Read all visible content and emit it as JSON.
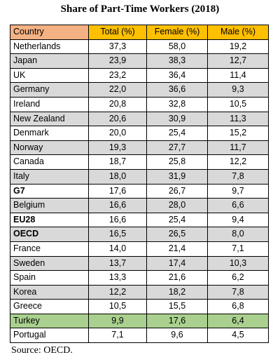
{
  "title": "Share of Part-Time Workers (2018)",
  "source": "Source: OECD.",
  "colors": {
    "header_country": "#f4b183",
    "header_values": "#ffc000",
    "row_stripe": "#d9d9d9",
    "highlight": "#a9d08e"
  },
  "chart_data": {
    "type": "table",
    "title": "Share of Part-Time Workers (2018)",
    "columns": [
      "Country",
      "Total (%)",
      "Female (%)",
      "Male (%)"
    ],
    "rows": [
      {
        "country": "Netherlands",
        "total": "37,3",
        "female": "58,0",
        "male": "19,2",
        "bold": false,
        "highlight": false
      },
      {
        "country": "Japan",
        "total": "23,9",
        "female": "38,3",
        "male": "12,7",
        "bold": false,
        "highlight": false
      },
      {
        "country": "UK",
        "total": "23,2",
        "female": "36,4",
        "male": "11,4",
        "bold": false,
        "highlight": false
      },
      {
        "country": "Germany",
        "total": "22,0",
        "female": "36,6",
        "male": "9,3",
        "bold": false,
        "highlight": false
      },
      {
        "country": "Ireland",
        "total": "20,8",
        "female": "32,8",
        "male": "10,5",
        "bold": false,
        "highlight": false
      },
      {
        "country": "New Zealand",
        "total": "20,6",
        "female": "30,9",
        "male": "11,3",
        "bold": false,
        "highlight": false
      },
      {
        "country": "Denmark",
        "total": "20,0",
        "female": "25,4",
        "male": "15,2",
        "bold": false,
        "highlight": false
      },
      {
        "country": "Norway",
        "total": "19,3",
        "female": "27,7",
        "male": "11,7",
        "bold": false,
        "highlight": false
      },
      {
        "country": "Canada",
        "total": "18,7",
        "female": "25,8",
        "male": "12,2",
        "bold": false,
        "highlight": false
      },
      {
        "country": "Italy",
        "total": "18,0",
        "female": "31,9",
        "male": "7,8",
        "bold": false,
        "highlight": false
      },
      {
        "country": "G7",
        "total": "17,6",
        "female": "26,7",
        "male": "9,7",
        "bold": true,
        "highlight": false
      },
      {
        "country": "Belgium",
        "total": "16,6",
        "female": "28,0",
        "male": "6,6",
        "bold": false,
        "highlight": false
      },
      {
        "country": "EU28",
        "total": "16,6",
        "female": "25,4",
        "male": "9,4",
        "bold": true,
        "highlight": false
      },
      {
        "country": "OECD",
        "total": "16,5",
        "female": "26,5",
        "male": "8,0",
        "bold": true,
        "highlight": false
      },
      {
        "country": "France",
        "total": "14,0",
        "female": "21,4",
        "male": "7,1",
        "bold": false,
        "highlight": false
      },
      {
        "country": "Sweden",
        "total": "13,7",
        "female": "17,4",
        "male": "10,3",
        "bold": false,
        "highlight": false
      },
      {
        "country": "Spain",
        "total": "13,3",
        "female": "21,6",
        "male": "6,2",
        "bold": false,
        "highlight": false
      },
      {
        "country": "Korea",
        "total": "12,2",
        "female": "18,2",
        "male": "7,8",
        "bold": false,
        "highlight": false
      },
      {
        "country": "Greece",
        "total": "10,5",
        "female": "15,5",
        "male": "6,8",
        "bold": false,
        "highlight": false
      },
      {
        "country": "Turkey",
        "total": "9,9",
        "female": "17,6",
        "male": "6,4",
        "bold": false,
        "highlight": true
      },
      {
        "country": "Portugal",
        "total": "7,1",
        "female": "9,6",
        "male": "4,5",
        "bold": false,
        "highlight": false
      }
    ]
  }
}
